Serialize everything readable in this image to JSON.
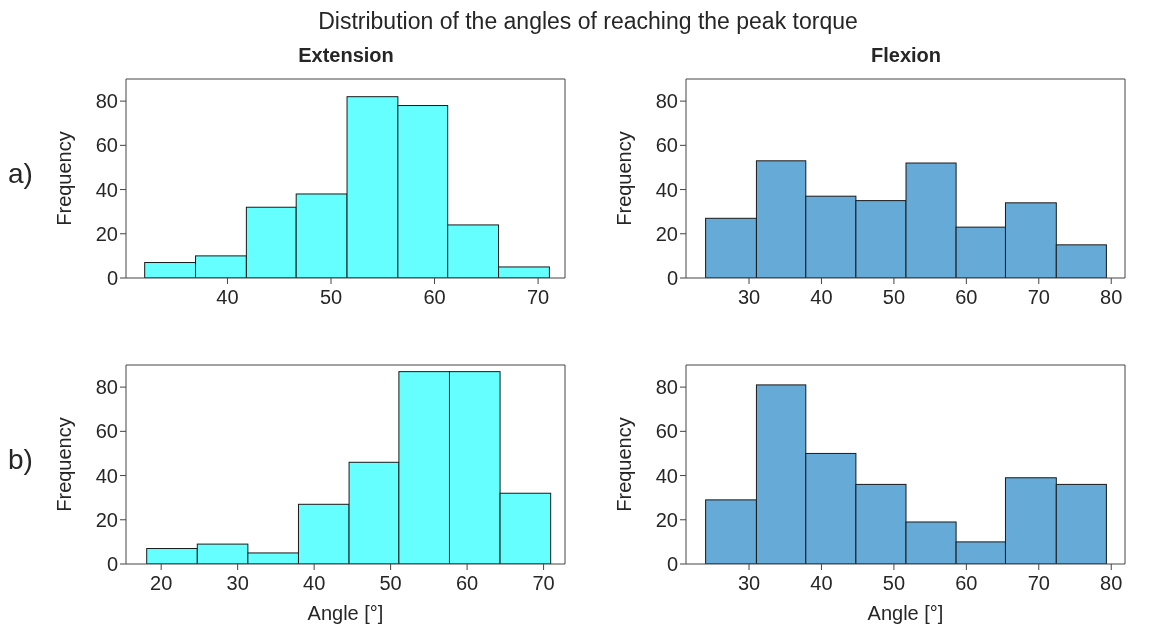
{
  "chart_data": [
    {
      "type": "histogram",
      "title": "Distribution of the angles of reaching the peak torque",
      "subtitle": "Extension",
      "ylabel": "Frequency",
      "annotations": [
        "a)"
      ],
      "bins": [
        32.0,
        36.9,
        41.8,
        46.6,
        51.5,
        56.4,
        61.2,
        66.1,
        71.0
      ],
      "values": [
        7,
        10,
        32,
        38,
        82,
        78,
        24,
        5
      ],
      "color": "#66ffff",
      "xlim": [
        30.2,
        72.6
      ],
      "xticks": [
        40,
        50,
        60,
        70
      ],
      "ylim": [
        0,
        90
      ],
      "yticks": [
        0,
        20,
        40,
        60,
        80
      ],
      "grid": false,
      "legend": false
    },
    {
      "type": "histogram",
      "title": "Flexion",
      "ylabel": "Frequency",
      "bins": [
        24.0,
        31.0,
        37.8,
        44.7,
        51.6,
        58.5,
        65.3,
        72.3,
        79.2
      ],
      "values": [
        27,
        53,
        37,
        35,
        52,
        23,
        34,
        15
      ],
      "color": "#66aad7",
      "xlim": [
        21.3,
        81.9
      ],
      "xticks": [
        30,
        40,
        50,
        60,
        70,
        80
      ],
      "ylim": [
        0,
        90
      ],
      "yticks": [
        0,
        20,
        40,
        60,
        80
      ],
      "grid": false,
      "legend": false
    },
    {
      "type": "histogram",
      "xlabel": "Angle [°]",
      "ylabel": "Frequency",
      "annotations": [
        "b)"
      ],
      "bins": [
        18.1,
        24.7,
        31.3,
        37.9,
        44.5,
        51.0,
        57.6,
        64.2,
        70.8
      ],
      "values": [
        7,
        9,
        5,
        27,
        46,
        87,
        87,
        32
      ],
      "color": "#66ffff",
      "xlim": [
        15.4,
        72.8
      ],
      "xticks": [
        20,
        30,
        40,
        50,
        60,
        70
      ],
      "ylim": [
        0,
        90
      ],
      "yticks": [
        0,
        20,
        40,
        60,
        80
      ],
      "grid": false,
      "legend": false
    },
    {
      "type": "histogram",
      "xlabel": "Angle [°]",
      "ylabel": "Frequency",
      "bins": [
        24.0,
        31.0,
        37.8,
        44.7,
        51.6,
        58.5,
        65.3,
        72.3,
        79.2
      ],
      "values": [
        29,
        81,
        50,
        36,
        19,
        10,
        39,
        36
      ],
      "color": "#66aad7",
      "xlim": [
        21.3,
        81.9
      ],
      "xticks": [
        30,
        40,
        50,
        60,
        70,
        80
      ],
      "ylim": [
        0,
        90
      ],
      "yticks": [
        0,
        20,
        40,
        60,
        80
      ],
      "grid": false,
      "legend": false
    }
  ]
}
